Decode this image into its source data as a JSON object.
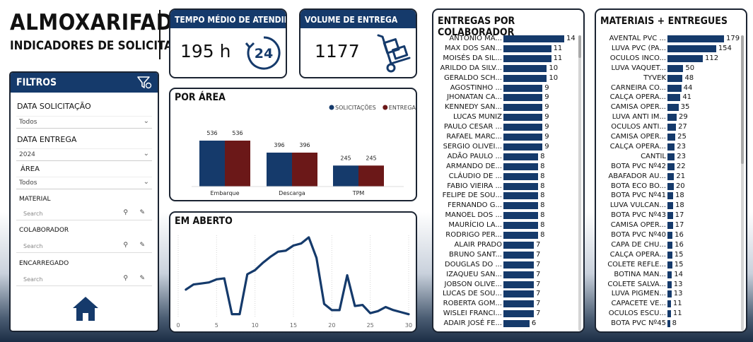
{
  "header": {
    "title": "ALMOXARIFADO",
    "subtitle": "INDICADORES DE SOLICITAÇÕES"
  },
  "kpi_tempo": {
    "label": "TEMPO MÉDIO DE ATENDIMENTO",
    "value": "195 h",
    "icon": "clock-24-icon",
    "icon_text": "24"
  },
  "kpi_volume": {
    "label": "VOLUME DE ENTREGA",
    "value": "1177",
    "icon": "hand-truck-icon"
  },
  "filters": {
    "title": "FILTROS",
    "data_solicitacao": {
      "label": "DATA SOLICITAÇÃO",
      "value": "Todos"
    },
    "data_entrega": {
      "label": "DATA ENTREGA",
      "value": "2024"
    },
    "area": {
      "label": "ÁREA",
      "value": "Todos"
    },
    "material": {
      "label": "MATERIAL",
      "placeholder": "Search"
    },
    "colaborador": {
      "label": "COLABORADOR",
      "placeholder": "Search"
    },
    "encarregado": {
      "label": "ENCARREGADO",
      "placeholder": "Search"
    }
  },
  "por_area": {
    "title": "POR ÁREA",
    "chart_data": {
      "type": "bar",
      "categories": [
        "Embarque",
        "Descarga",
        "TPM"
      ],
      "series": [
        {
          "name": "SOLICITAÇÕES",
          "color": "#153a6b",
          "values": [
            536,
            396,
            245
          ]
        },
        {
          "name": "ENTREGAS",
          "color": "#6b1818",
          "values": [
            536,
            396,
            245
          ]
        }
      ],
      "ylim": [
        0,
        536
      ],
      "legend": "top-right"
    }
  },
  "em_aberto": {
    "title": "EM ABERTO",
    "chart_data": {
      "type": "line",
      "x": [
        1,
        2,
        3,
        4,
        5,
        6,
        7,
        8,
        9,
        10,
        11,
        12,
        13,
        14,
        15,
        16,
        17,
        18,
        19,
        20,
        21,
        22,
        23,
        24,
        25,
        26,
        27,
        28,
        29,
        30
      ],
      "values": [
        27,
        32,
        33,
        34,
        37,
        38,
        3,
        3,
        42,
        46,
        53,
        59,
        64,
        65,
        70,
        72,
        78,
        58,
        13,
        7,
        7,
        41,
        11,
        12,
        4,
        6,
        10,
        7,
        5,
        3
      ],
      "xticks": [
        "0",
        "5",
        "10",
        "15",
        "20",
        "25",
        "30"
      ],
      "xlim": [
        0,
        30
      ],
      "ylim": [
        0,
        80
      ],
      "color": "#153a6b"
    }
  },
  "entregas_colaborador": {
    "title": "ENTREGAS POR COLABORADOR",
    "chart_data": {
      "type": "bar",
      "categories": [
        "ANTÔNIO MA...",
        "MAX DOS SAN...",
        "MOISÉS DA SIL...",
        "ARILDO DA SILV...",
        "GERALDO SCH...",
        "AGOSTINHO ...",
        "JHONATAN CA...",
        "KENNEDY SAN...",
        "LUCAS MUNIZ",
        "PAULO CESAR ...",
        "RAFAEL MARC...",
        "SERGIO OLIVEI...",
        "ADÃO PAULO ...",
        "ARMANDO DE...",
        "CLÁUDIO DE ...",
        "FABIO VIEIRA ...",
        "FELIPE DE SOU...",
        "FERNANDO G...",
        "MANOEL DOS ...",
        "MAURÍCIO LA...",
        "RODRIGO PER...",
        "ALAIR PRADO",
        "BRUNO SANT...",
        "DOUGLAS DO ...",
        "IZAQUEU SAN...",
        "JOBSON OLIVE...",
        "LUCAS DE SOU...",
        "ROBERTA GOM...",
        "WISLEI FRANCI...",
        "ADAIR JOSÉ FE..."
      ],
      "values": [
        14,
        11,
        11,
        10,
        10,
        9,
        9,
        9,
        9,
        9,
        9,
        9,
        8,
        8,
        8,
        8,
        8,
        8,
        8,
        8,
        8,
        7,
        7,
        7,
        7,
        7,
        7,
        7,
        7,
        6
      ],
      "xlim": [
        0,
        14
      ]
    }
  },
  "materiais": {
    "title": "MATERIAIS + ENTREGUES",
    "chart_data": {
      "type": "bar",
      "categories": [
        "AVENTAL PVC ...",
        "LUVA PVC (PA...",
        "OCULOS INCO...",
        "LUVA VAQUET...",
        "TYVEK",
        "CARNEIRA CO...",
        "CALÇA OPERA...",
        "CAMISA OPER...",
        "LUVA ANTI IM...",
        "OCULOS ANTI...",
        "CAMISA OPER...",
        "CALÇA OPERA...",
        "CANTIL",
        "BOTA PVC Nº42",
        "ABAFADOR AU...",
        "BOTA ECO BO...",
        "BOTA PVC Nº41",
        "LUVA VULCAN...",
        "BOTA PVC Nº43",
        "CAMISA OPER...",
        "BOTA PVC Nº40",
        "CAPA DE CHU...",
        "CALÇA OPERA...",
        "COLETE REFLE...",
        "BOTINA MAN...",
        "COLETE SALVA...",
        "LUVA PIGMEN...",
        "CAPACETE VE...",
        "OCULOS ESCU...",
        "BOTA PVC Nº45"
      ],
      "values": [
        179,
        154,
        112,
        50,
        48,
        44,
        41,
        35,
        29,
        27,
        25,
        23,
        23,
        22,
        21,
        20,
        18,
        18,
        17,
        17,
        16,
        16,
        15,
        15,
        14,
        13,
        13,
        11,
        11,
        8
      ],
      "xlim": [
        0,
        179
      ]
    }
  }
}
